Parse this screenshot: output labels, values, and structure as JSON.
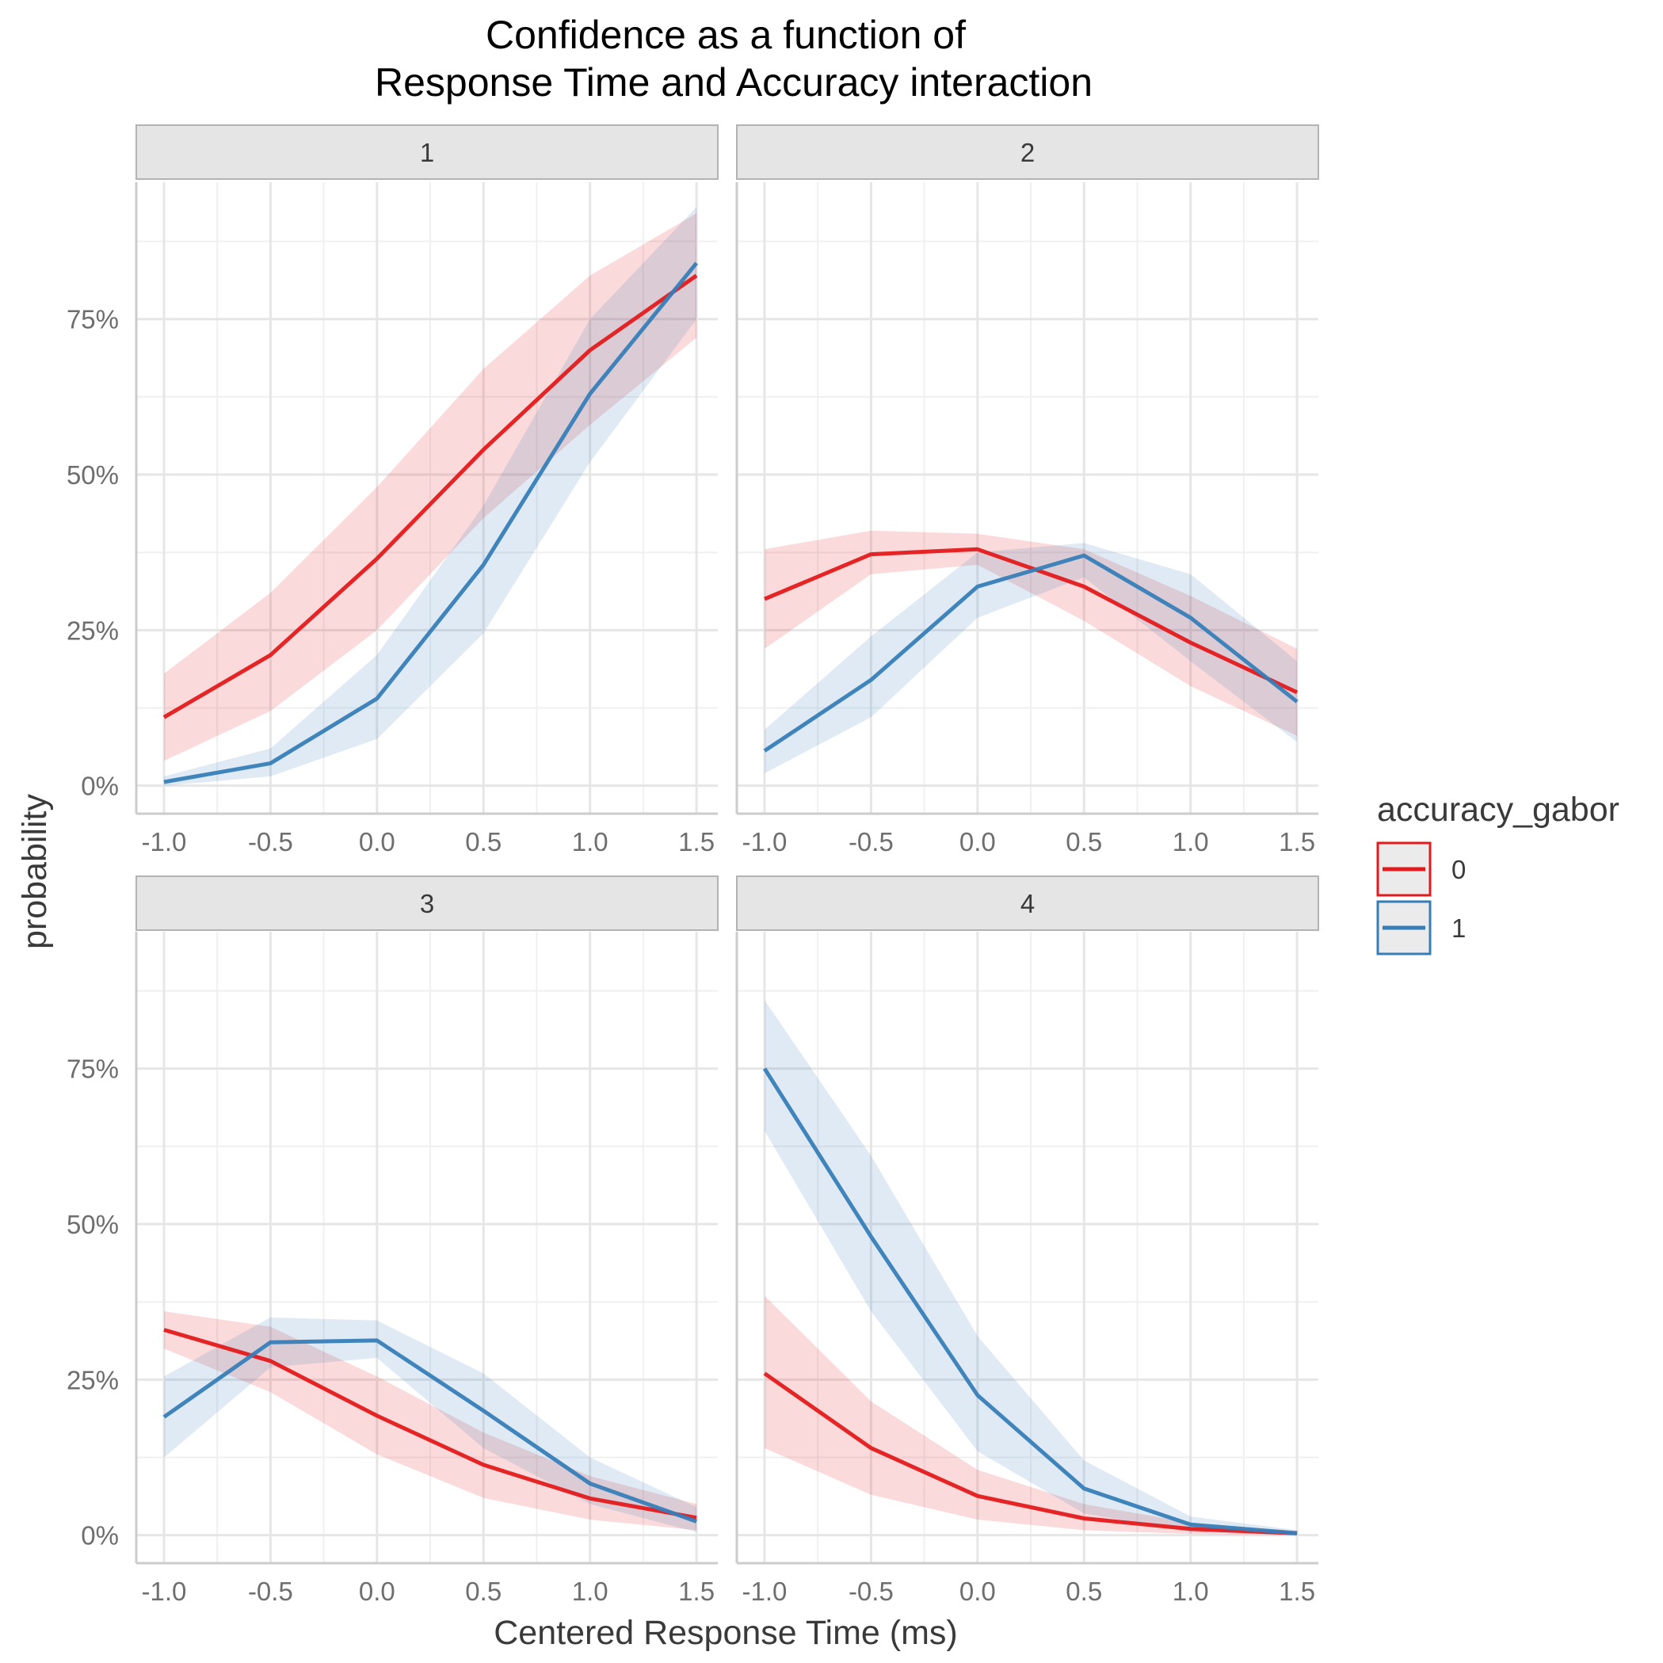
{
  "chart_data": {
    "type": "line",
    "title_lines": [
      "Confidence as a function of",
      "Response Time and Accuracy interaction"
    ],
    "xlabel": "Centered Response Time (ms)",
    "ylabel": "probability",
    "x": [
      -1.0,
      -0.5,
      0.0,
      0.5,
      1.0,
      1.5
    ],
    "x_tick_labels": [
      "-1.0",
      "-0.5",
      "0.0",
      "0.5",
      "1.0",
      "1.5"
    ],
    "xlim": [
      -1.13,
      1.6
    ],
    "y_ticks": [
      0,
      0.25,
      0.5,
      0.75
    ],
    "y_tick_labels": [
      "0%",
      "25%",
      "50%",
      "75%"
    ],
    "ylim": [
      -0.045,
      0.97
    ],
    "grid": true,
    "legend": {
      "title": "accuracy_gabor",
      "placement": "right",
      "entries": [
        {
          "label": "0",
          "color": "#e41a1c"
        },
        {
          "label": "1",
          "color": "#377eb8"
        }
      ]
    },
    "colors": {
      "0": "#e41a1c",
      "1": "#377eb8"
    },
    "facets": [
      {
        "label": "1",
        "series": [
          {
            "name": "0",
            "values": [
              0.11,
              0.21,
              0.365,
              0.54,
              0.7,
              0.82
            ],
            "lower": [
              0.04,
              0.12,
              0.25,
              0.43,
              0.58,
              0.72
            ],
            "upper": [
              0.18,
              0.31,
              0.48,
              0.67,
              0.82,
              0.92
            ]
          },
          {
            "name": "1",
            "values": [
              0.006,
              0.036,
              0.14,
              0.355,
              0.63,
              0.84
            ],
            "lower": [
              0.0,
              0.015,
              0.075,
              0.245,
              0.52,
              0.75
            ],
            "upper": [
              0.015,
              0.06,
              0.21,
              0.45,
              0.75,
              0.93
            ]
          }
        ]
      },
      {
        "label": "2",
        "series": [
          {
            "name": "0",
            "values": [
              0.3,
              0.372,
              0.38,
              0.32,
              0.23,
              0.15
            ],
            "lower": [
              0.22,
              0.34,
              0.355,
              0.265,
              0.16,
              0.08
            ],
            "upper": [
              0.38,
              0.41,
              0.405,
              0.38,
              0.305,
              0.22
            ]
          },
          {
            "name": "1",
            "values": [
              0.056,
              0.17,
              0.32,
              0.37,
              0.27,
              0.135
            ],
            "lower": [
              0.02,
              0.11,
              0.27,
              0.335,
              0.2,
              0.07
            ],
            "upper": [
              0.09,
              0.24,
              0.375,
              0.39,
              0.34,
              0.2
            ]
          }
        ]
      },
      {
        "label": "3",
        "series": [
          {
            "name": "0",
            "values": [
              0.33,
              0.28,
              0.192,
              0.113,
              0.059,
              0.028
            ],
            "lower": [
              0.3,
              0.23,
              0.13,
              0.06,
              0.025,
              0.008
            ],
            "upper": [
              0.36,
              0.335,
              0.255,
              0.165,
              0.095,
              0.05
            ]
          },
          {
            "name": "1",
            "values": [
              0.19,
              0.31,
              0.313,
              0.2,
              0.083,
              0.022
            ],
            "lower": [
              0.125,
              0.27,
              0.285,
              0.14,
              0.05,
              0.005
            ],
            "upper": [
              0.255,
              0.35,
              0.345,
              0.26,
              0.125,
              0.045
            ]
          }
        ]
      },
      {
        "label": "4",
        "series": [
          {
            "name": "0",
            "values": [
              0.26,
              0.14,
              0.063,
              0.027,
              0.01,
              0.003
            ],
            "lower": [
              0.14,
              0.065,
              0.025,
              0.008,
              0.002,
              0.0
            ],
            "upper": [
              0.385,
              0.215,
              0.105,
              0.05,
              0.02,
              0.007
            ]
          },
          {
            "name": "1",
            "values": [
              0.75,
              0.48,
              0.225,
              0.075,
              0.017,
              0.003
            ],
            "lower": [
              0.65,
              0.36,
              0.135,
              0.035,
              0.005,
              0.0
            ],
            "upper": [
              0.86,
              0.61,
              0.32,
              0.12,
              0.03,
              0.008
            ]
          }
        ]
      }
    ]
  }
}
